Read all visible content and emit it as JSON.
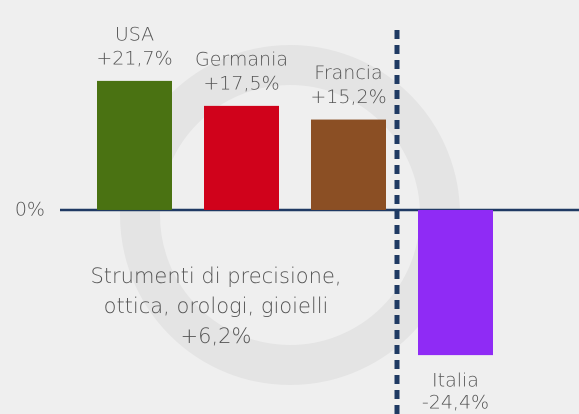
{
  "chart_data": {
    "type": "bar",
    "categories": [
      "USA",
      "Germania",
      "Francia",
      "Italia"
    ],
    "values": [
      21.7,
      17.5,
      15.2,
      -24.4
    ],
    "value_labels": [
      "+21,7%",
      "+17,5%",
      "+15,2%",
      "-24,4%"
    ],
    "colors": [
      "#4a7212",
      "#d0021b",
      "#8b4f24",
      "#8f2bf5"
    ],
    "ylim": [
      -34.3,
      35.3
    ],
    "yticks": [
      {
        "value": 0,
        "label": "0%"
      }
    ],
    "annotation": [
      "Strumenti di precisione,",
      "ottica, orologi, gioielli",
      "+6,2%"
    ]
  }
}
